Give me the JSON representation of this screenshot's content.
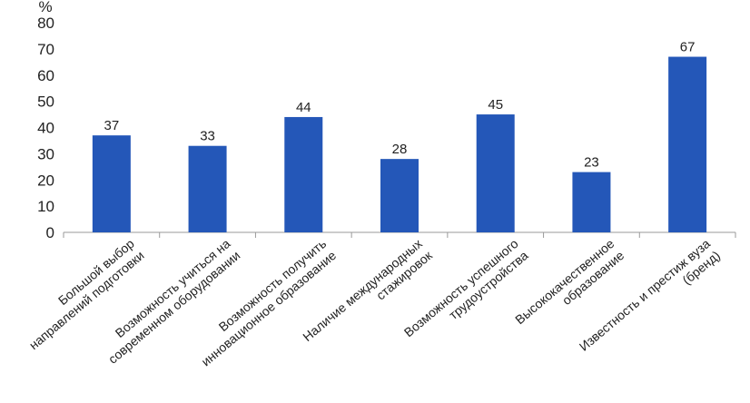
{
  "chart_data": {
    "type": "bar",
    "unit_label": "%",
    "categories": [
      [
        "Большой выбор",
        "направлений подготовки"
      ],
      [
        "Возможность учиться на",
        "современном оборудовании"
      ],
      [
        "Возможность получить",
        "инновационное образование"
      ],
      [
        "Наличие международных",
        "стажировок"
      ],
      [
        "Возможность успешного",
        "трудоустройства"
      ],
      [
        "Высококачественное",
        "образование"
      ],
      [
        "Известность и престиж вуза",
        "(бренд)"
      ]
    ],
    "values": [
      37,
      33,
      44,
      28,
      45,
      23,
      67
    ],
    "ylim": [
      0,
      80
    ],
    "yticks": [
      0,
      10,
      20,
      30,
      40,
      50,
      60,
      70,
      80
    ],
    "grid": false,
    "colors": {
      "bar": "#2457b8",
      "axis": "#9a9a9a"
    }
  }
}
